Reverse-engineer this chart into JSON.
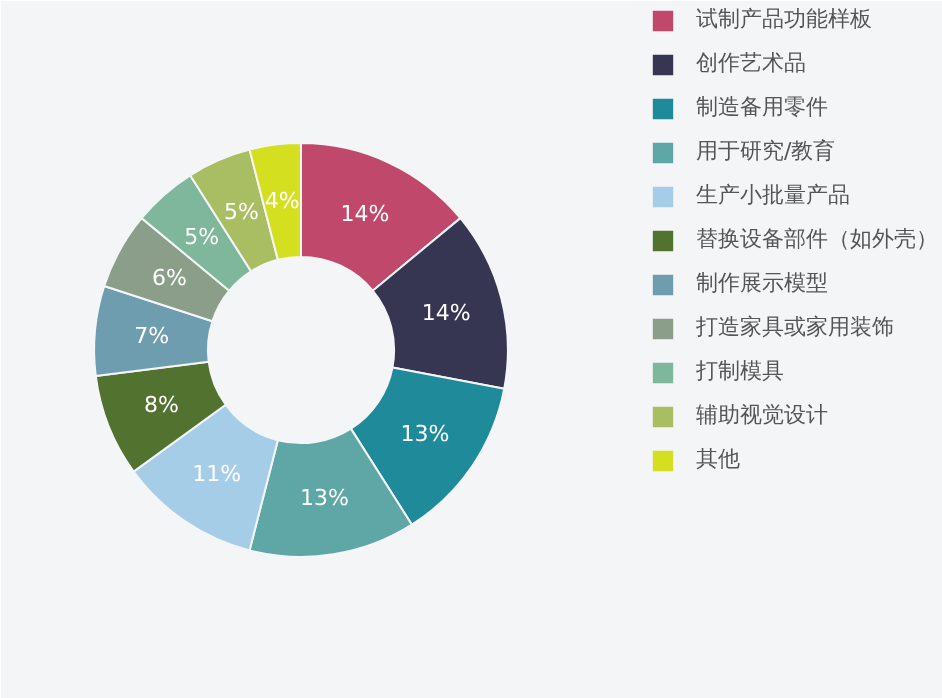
{
  "chart_data": {
    "type": "donut",
    "categories": [
      "试制产品功能样板",
      "创作艺术品",
      "制造备用零件",
      "用于研究/教育",
      "生产小批量产品",
      "替换设备部件（如外壳）",
      "制作展示模型",
      "打造家具或家用装饰",
      "打制模具",
      "辅助视觉设计",
      "其他"
    ],
    "values": [
      14,
      14,
      13,
      13,
      11,
      8,
      7,
      6,
      5,
      5,
      4
    ],
    "value_labels": [
      "14%",
      "14%",
      "13%",
      "13%",
      "11%",
      "8%",
      "7%",
      "6%",
      "5%",
      "5%",
      "4%"
    ],
    "colors": [
      "#c0496b",
      "#363652",
      "#1e8a9a",
      "#5fa6a6",
      "#a6cde8",
      "#52722f",
      "#6f9db0",
      "#8a9e8a",
      "#7fb79d",
      "#a9bd62",
      "#d4e01f"
    ],
    "legend": "right"
  }
}
